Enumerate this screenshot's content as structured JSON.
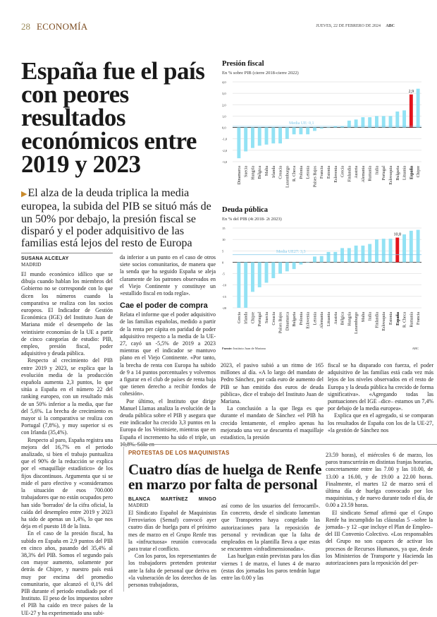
{
  "header": {
    "page_number": "28",
    "section": "ECONOMÍA",
    "date": "JUEVES, 22 DE FEBRERO DE 2024",
    "brand": "ABC"
  },
  "article": {
    "title": "España fue el país con peores resultados económicos entre 2019 y 2023",
    "subtitle": "El alza de la deuda triplica la media europea, la subida del PIB se situó más de un 50% por debajo, la presión fiscal se disparó y el poder adquisitivo de las familias está lejos del resto de Europa",
    "author": "SUSANA ALCELAY",
    "location": "MADRID",
    "paragraphs": [
      "El mundo económico idílico que se dibuja cuando hablan los miembros del Gobierno no se corresponde con lo que dicen los números cuando la comparativa se realiza con los socios europeos. El Indicador de Gestión Económica (IGE) del Instituto Juan de Mariana mide el desempeño de las veintisiete economías de la UE a partir de cinco categorías de estudio: PIB, empleo, presión fiscal, poder adquisitivo y deuda pública.",
      "Respecto al crecimiento del PIB entre 2019 y 2023, se explica que la evolución media de la producción española aumenta 2,3 puntos, lo que sitúa a España en el número 22 del ranking europeo, con un resultado más de un 50% inferior a la media, que fue del 5,6%. La brecha de crecimiento es mayor si la comparativa se realiza con Portugal (7,8%), y muy superior si es con Irlanda (35,4%).",
      "Respecto al paro, España registra una mejora del 16,7% en el periodo analizado, si bien el trabajo puntualiza que el 90% de la reducción se explica por el «maquillaje estadístico» de los fijos discontinuos. Argumenta que si se mide el paro efectivo y «consideramos la situación de esos 700.000 trabajadores que no están ocupados pero han sido 'borrados' de la cifra oficial, la caída del desempleo entre 2019 y 2023 ha sido de apenas un 1,4%, lo que nos deja en el puesto 18 de la lista.",
      "En el caso de la presión fiscal, ha subido en España en 2,9 puntos del PIB en cinco años, pasando del 35,4% al 38,3% del PIB. Somos el segundo país con mayor aumento, solamente por detrás de Chipre, y nuestro país está muy por encima del promedio comunitario, que alcanzó el 0,1% del PIB durante el periodo estudiado por el Instituto. El peso de los impuestos sobre el PIB ha caído en trece países de la UE-27 y ha experimentado una subi-",
      "da inferior a un punto en el caso de otros siete socios comunitarios, de manera que la senda que ha seguido España se aleja claramente de los patrones observados en el Viejo Continente y constituye un «estallido fiscal en toda regla».",
      "Relata el informe que el poder adquisitivo de las familias españolas, medido a partir de la renta per cápita en paridad de poder adquisitivo respecto a la media de la UE-27, cayó un -5,5% de 2019 a 2023 mientras que el indicador se mantuvo plano en el Viejo Continente. «Por tanto, la brecha de renta con Europa ha subido de 9 a 14 puntos porcentuales y volvemos a figurar en el club de países de renta baja que tienen derecho a recibir fondos de cohesión».",
      "Por último, el Instituto que dirige Manuel Llamas analiza la evolución de la deuda pública sobre el PIB y asegura que este indicador ha crecido 3,3 puntos en la Europa de los Veintisiete, mientras que en España el incremento ha sido el triple, un 10,8%. Sólo en",
      "2023, el pasivo subió a un ritmo de 165 millones al día. «A lo largo del mandato de Pedro Sánchez, por cada euro de aumento del PIB se han emitido dos euros de deuda pública», dice el trabajo del Instituto Juan de Mariana.",
      "La conclusión a la que llega es que durante el mandato de Sánchez «el PIB ha crecido lentamente, el empleo apenas ha mejorado una vez se descuenta el maquillaje estadístico, la presión",
      "fiscal se ha disparado con fuerza, el poder adquisitivo de las familias está cada vez más lejos de los niveles observados en el resto de Europa y la deuda pública ha crecido de forma significativa». «Agregando todas las puntuaciones del IGE –dice– estamos un 7,4% por debajo de la media europea».",
      "Explica que en el agregado, si se comparan los resultados de España con los de la UE-27, «la gestión de Sánchez nos"
    ],
    "subheading": "Cae el poder de compra"
  },
  "charts_source": {
    "label": "Fuente:",
    "text": "Instituto Juan de Mariana",
    "brand": "ABC"
  },
  "chart_data": [
    {
      "type": "bar",
      "title": "Presión fiscal",
      "subtitle": "En % sobre PIB (cierre 2018-cierre 2022)",
      "categories": [
        "Dinamarca",
        "Suecia",
        "Hungría",
        "Bélgica",
        "Malta",
        "Irlanda",
        "Croacia",
        "Luxemburgo",
        "R. Checa",
        "Polonia",
        "Letonia",
        "Países Bajos",
        "Francia",
        "Estonia",
        "Eslovenia",
        "Grecia",
        "Finlandia",
        "Austria",
        "Alemania",
        "Rumanía",
        "Italia",
        "Portugal",
        "Eslovaquia",
        "Bulgaria",
        "Lituania",
        "España",
        "Chipre"
      ],
      "values": [
        -2.7,
        -2.1,
        -1.8,
        -1.6,
        -1.5,
        -1.4,
        -1.4,
        -1.0,
        -0.6,
        -0.6,
        -0.6,
        -0.3,
        -0.1,
        0.0,
        0.1,
        0.1,
        0.6,
        0.7,
        0.9,
        0.9,
        1.0,
        1.0,
        1.0,
        1.4,
        1.5,
        2.9,
        3.4
      ],
      "highlight": "España",
      "highlight_label": "2,9",
      "reference_line": {
        "label": "Media UE: 0,1",
        "value": 0.1
      },
      "ylim": [
        -3.0,
        4.0
      ],
      "yticks": [
        "4,0",
        "3,0",
        "2,0",
        "1,0",
        "0,0",
        "-1,0",
        "-2,0",
        "-3,0"
      ],
      "ytick_values": [
        4,
        3,
        2,
        1,
        0,
        -1,
        -2,
        -3
      ],
      "grid": true,
      "colors": {
        "bar": "#92e2f4",
        "highlight": "#e3141c",
        "reference": "#7fc8ea"
      }
    },
    {
      "type": "bar",
      "title": "Deuda pública",
      "subtitle": "En % del PIB (4t 2018- 2t 2023)",
      "categories": [
        "Grecia",
        "Irlanda",
        "Chipre",
        "Portugal",
        "Suecia",
        "Croacia",
        "Países Bajos",
        "Dinamarca",
        "Bulgaria",
        "Polonia",
        "Eslovenia",
        "Letonia",
        "Alemania",
        "Lituania",
        "Austria",
        "Bélgica",
        "Hungría",
        "Luxemburgo",
        "Malta",
        "Italia",
        "Finlandia",
        "Eslovaquia",
        "Estonia",
        "España",
        "R. Checa",
        "Rumanía",
        "Francia"
      ],
      "values": [
        -20,
        -20,
        -13,
        -11,
        -9,
        -7,
        -5,
        -4,
        -3,
        -1,
        0,
        2.5,
        2.7,
        4.5,
        4.5,
        6.2,
        6.2,
        7.3,
        7.3,
        8.0,
        10.0,
        10.3,
        10.3,
        10.8,
        12.2,
        13.8,
        14.2
      ],
      "highlight": "España",
      "highlight_label": "10,8",
      "reference_line": {
        "label": "Media UE27: 3,3",
        "value": 3.3
      },
      "ylim": [
        -20,
        15
      ],
      "yticks": [
        "15",
        "10",
        "5",
        "0",
        "-5",
        "-10",
        "-15",
        "-20"
      ],
      "ytick_values": [
        15,
        10,
        5,
        0,
        -5,
        -10,
        -15,
        -20
      ],
      "grid": true,
      "colors": {
        "bar": "#92e2f4",
        "highlight": "#e3141c",
        "reference": "#7fc8ea"
      }
    }
  ],
  "renfe": {
    "kicker": "PROTESTAS DE LOS MAQUINISTAS",
    "title": "Cuatro días de huelga de Renfe en marzo por falta de personal",
    "author": "BLANCA MARTÍNEZ MINGO",
    "location": "MADRID",
    "paragraphs": [
      "El Sindicato Español de Maquinistas Ferroviarios (Semaf) convocó ayer cuatro días de huelga para el próximo mes de marzo en el Grupo Renfe tras la «infructuosa» reunión convocada para tratar el conflicto.",
      "Con los paros, los representantes de los trabajadores pretenden protestar ante la falta de personal que deriva en «la vulneración de los derechos de las personas trabajadoras,",
      "así como de los usuarios del ferrocarril». En concreto, desde el sindicato lamentan que Transportes haya congelado las autorizaciones para la reposición de personal y revindican que la falta de empleados en la plantilla lleva a que estas se encuentren «infradimensionadas».",
      "Las huelgan están previstas para los días viernes 1 de marzo, el lunes 4 de marzo (estas dos jornadas los paros tendrán lugar entre las 0.00 y las",
      "23.59 horas), el miércoles 6 de marzo, los paros transcurrirán en distintas franjas horarias, concretamente entre las 7.00 y las 10.00, de 13.00 a 16.00, y de 19.00 a 22.00 horas. Finalmente, el martes 12 de marzo será el última día de huelga convocado por los maquinistas, y de nuevo durante todo el día, de 0.00 a 23.59 horas.",
      "El sindicato Semaf afirmó que el Grupo Renfe ha incumplido las cláusulas 5 –sobre la jornada– y 12 –que incluye el Plan de Empleo– del III Convenio Colectivo. «Los responsables del Grupo no son capaces de activar los procesos de Recursos Humanos, ya que, desde los Ministerios de Transporte y Hacienda las autorizaciones para la reposición del per-"
    ]
  }
}
